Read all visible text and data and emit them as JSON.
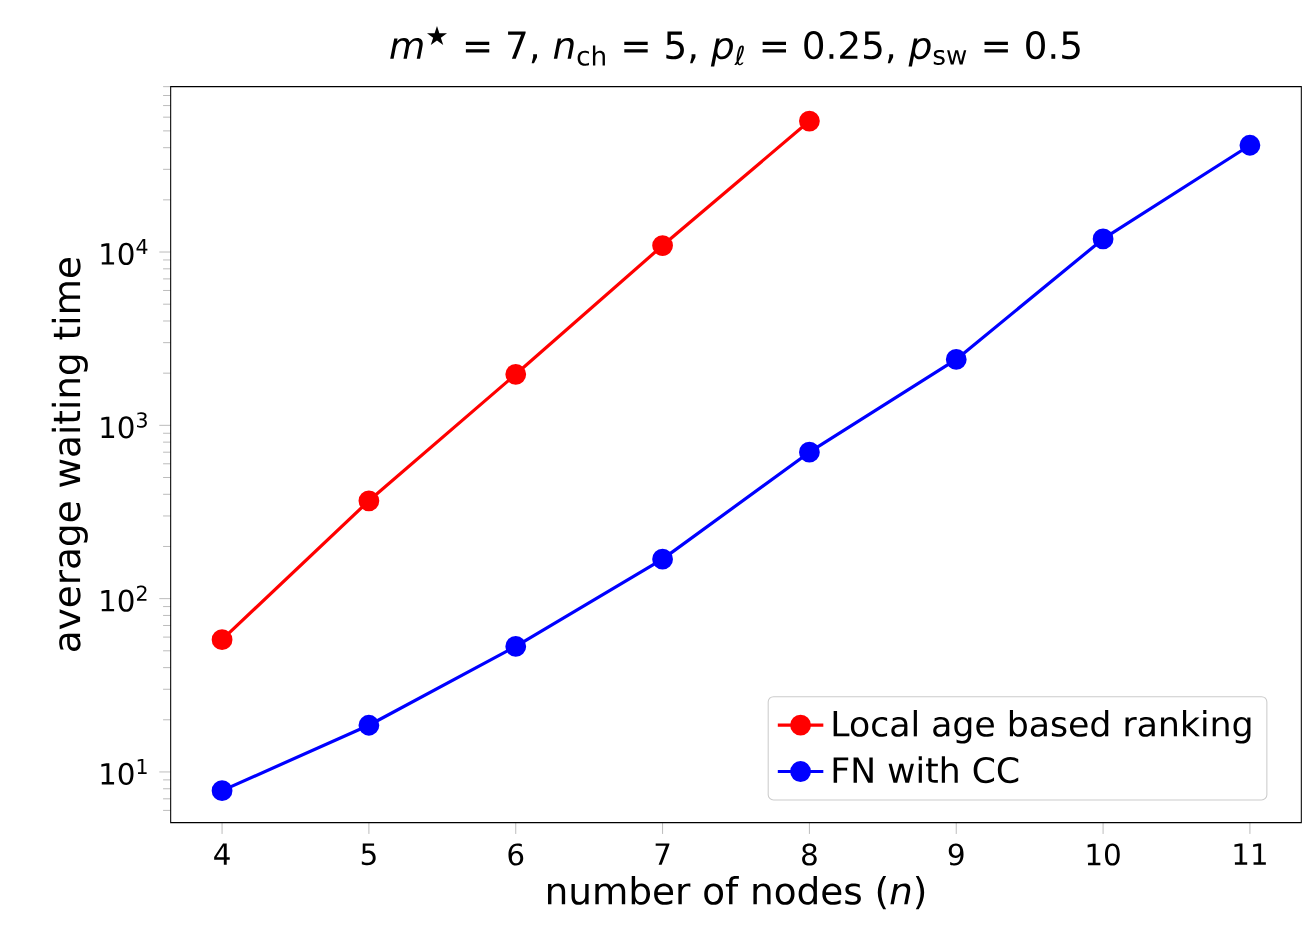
{
  "chart_data": {
    "type": "line",
    "title": "*m*$^{★}$ = 7, *n*$_{ch}$ = 5, *p*$_{ℓ}$ = 0.25, *p*$_{sw}$ = 0.5",
    "xlabel": "number of nodes (*n*)",
    "ylabel": "average waiting time",
    "x": [
      4,
      5,
      6,
      7,
      8,
      9,
      10,
      11
    ],
    "series": [
      {
        "name": "Local age based ranking",
        "color": "#ff0000",
        "x": [
          4,
          5,
          6,
          7,
          8
        ],
        "values": [
          58,
          367,
          1970,
          10900,
          57000
        ]
      },
      {
        "name": "FN with CC",
        "color": "#0000ff",
        "values": [
          7.8,
          18.6,
          53,
          169,
          700,
          2400,
          11900,
          41300
        ]
      }
    ],
    "log": "y",
    "xlim": [
      3.65,
      11.35
    ],
    "ylim": [
      5.1,
      90000
    ],
    "xticks": [
      4,
      5,
      6,
      7,
      8,
      9,
      10,
      11
    ],
    "yticks": [
      {
        "value": 10,
        "label": "10$^{1}$"
      },
      {
        "value": 100,
        "label": "10$^{2}$"
      },
      {
        "value": 1000,
        "label": "10$^{3}$"
      },
      {
        "value": 10000,
        "label": "10$^{4}$"
      }
    ],
    "legend": "bottom right",
    "marker": "circle",
    "line_style": "solid",
    "grid": false
  }
}
